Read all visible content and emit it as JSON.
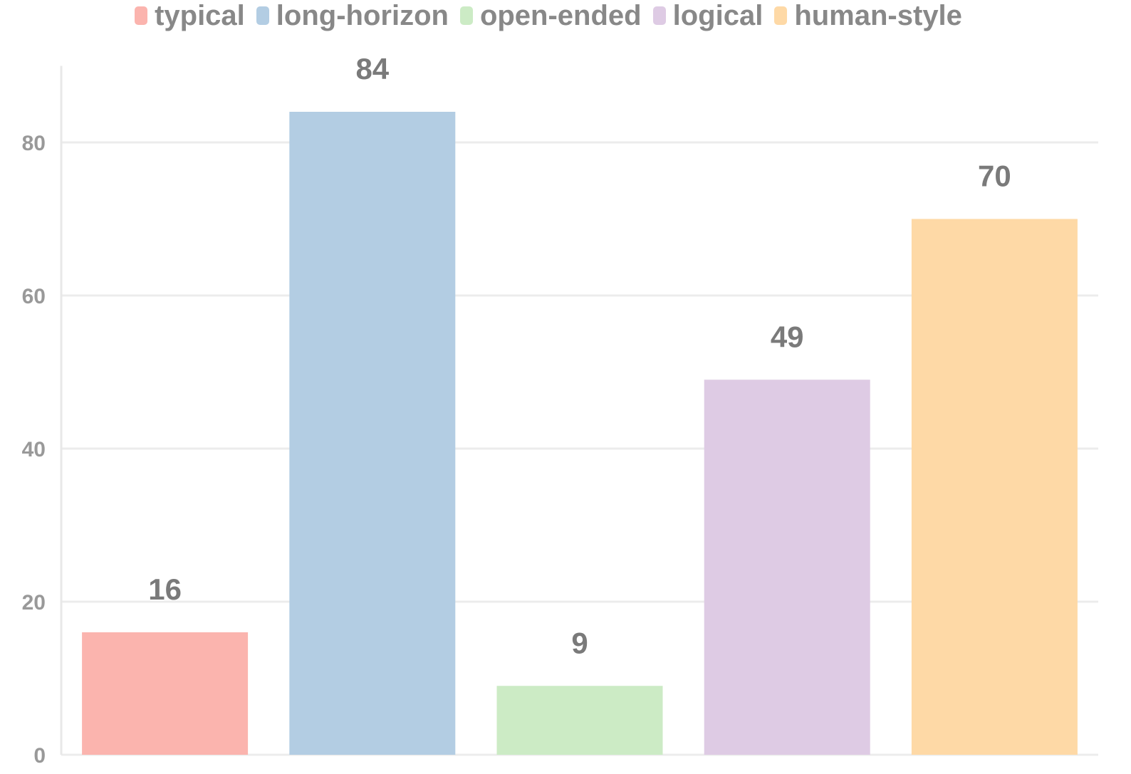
{
  "chart_data": {
    "type": "bar",
    "categories": [
      "typical",
      "long-horizon",
      "open-ended",
      "logical",
      "human-style"
    ],
    "values": [
      16,
      84,
      9,
      49,
      70
    ],
    "colors": [
      "#fbb4ae",
      "#b3cde3",
      "#ccebc5",
      "#decbe4",
      "#fed9a6"
    ],
    "legend": [
      "typical",
      "long-horizon",
      "open-ended",
      "logical",
      "human-style"
    ],
    "legend_position": "top-center",
    "yticks": [
      0,
      20,
      40,
      60,
      80
    ],
    "ylim": [
      0,
      90
    ],
    "grid": "horizontal",
    "data_labels": [
      "16",
      "84",
      "9",
      "49",
      "70"
    ]
  }
}
